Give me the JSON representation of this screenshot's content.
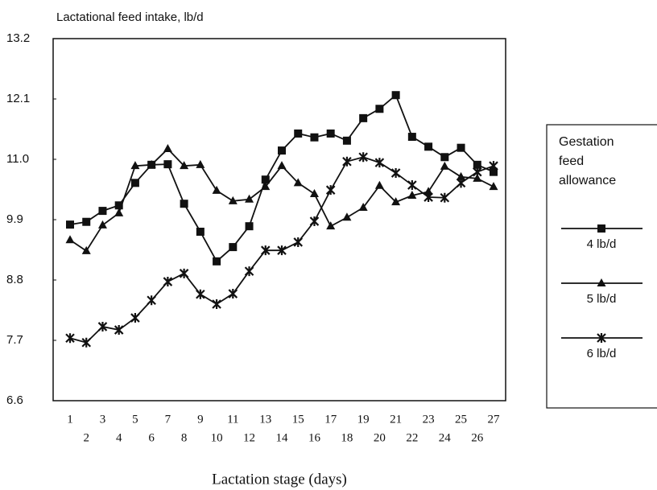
{
  "chart_data": {
    "type": "line",
    "y_label": "Lactational feed intake, lb/d",
    "x_label": "Lactation stage (days)",
    "legend_title": "Gestation feed allowance",
    "categories": [
      "1",
      "2",
      "3",
      "4",
      "5",
      "6",
      "7",
      "8",
      "9",
      "10",
      "11",
      "12",
      "13",
      "14",
      "15",
      "16",
      "17",
      "18",
      "19",
      "20",
      "21",
      "22",
      "23",
      "24",
      "25",
      "26",
      "27"
    ],
    "series": [
      {
        "name": "4 lb/d",
        "color": "#111111",
        "marker": "square",
        "values": [
          9.81,
          9.86,
          10.06,
          10.16,
          10.57,
          10.9,
          10.91,
          10.19,
          9.68,
          9.14,
          9.4,
          9.78,
          10.63,
          11.16,
          11.47,
          11.4,
          11.47,
          11.34,
          11.75,
          11.92,
          12.17,
          11.41,
          11.23,
          11.04,
          11.21,
          10.9,
          10.77
        ]
      },
      {
        "name": "5 lb/d",
        "color": "#111111",
        "marker": "triangle",
        "values": [
          9.53,
          9.33,
          9.8,
          10.02,
          10.88,
          10.9,
          11.19,
          10.88,
          10.9,
          10.43,
          10.24,
          10.27,
          10.5,
          10.88,
          10.57,
          10.37,
          9.78,
          9.94,
          10.12,
          10.52,
          10.22,
          10.34,
          10.41,
          10.87,
          10.68,
          10.65,
          10.5
        ]
      },
      {
        "name": "6 lb/d",
        "color": "#111111",
        "marker": "star",
        "values": [
          7.74,
          7.66,
          7.95,
          7.89,
          8.11,
          8.43,
          8.77,
          8.92,
          8.54,
          8.36,
          8.55,
          8.96,
          9.34,
          9.34,
          9.49,
          9.87,
          10.44,
          10.96,
          11.04,
          10.94,
          10.75,
          10.53,
          10.31,
          10.3,
          10.57,
          10.77,
          10.88
        ]
      }
    ],
    "ylim": [
      6.6,
      13.2
    ],
    "yticks": [
      6.6,
      7.7,
      8.8,
      9.9,
      {
        "value": 11,
        "label": "11.0"
      },
      12.1,
      13.2
    ],
    "grid": false
  }
}
